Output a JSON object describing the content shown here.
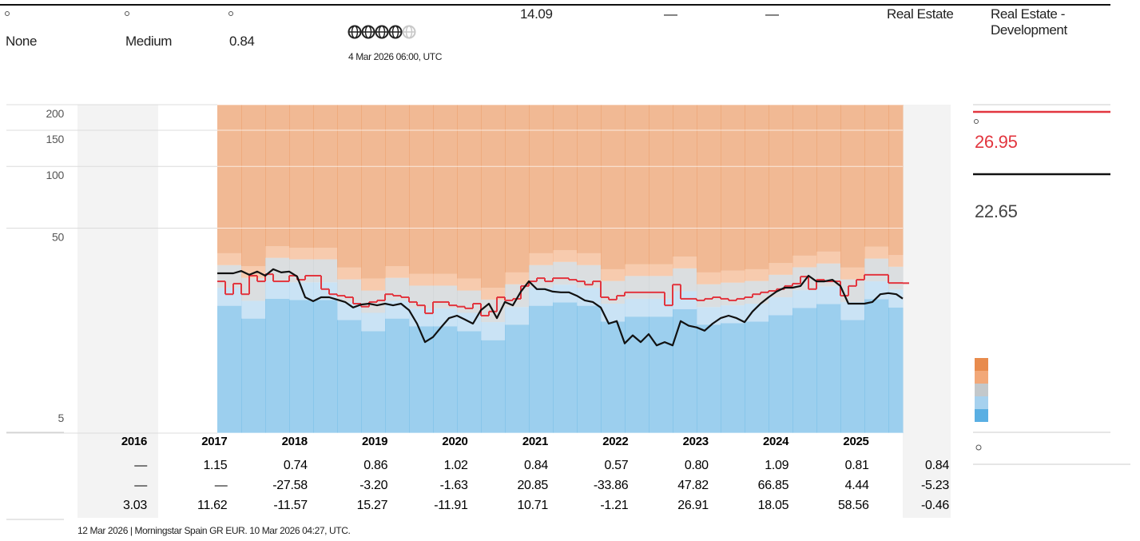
{
  "header": {
    "risk": "None",
    "uncertainty": "Medium",
    "beta": "0.84",
    "globes": 4,
    "rating_date": "4 Mar 2026 06:00, UTC",
    "price": "14.09",
    "dash1": "—",
    "dash2": "—",
    "sector": "Real Estate",
    "industry": "Real Estate - Development"
  },
  "chart_data": {
    "type": "line",
    "x": [
      2017.82,
      2017.92,
      2018.02,
      2018.12,
      2018.22,
      2018.32,
      2018.42,
      2018.52,
      2018.62,
      2018.72,
      2018.82,
      2018.92,
      2019.02,
      2019.12,
      2019.22,
      2019.32,
      2019.42,
      2019.52,
      2019.62,
      2019.72,
      2019.82,
      2019.92,
      2020.02,
      2020.12,
      2020.22,
      2020.32,
      2020.42,
      2020.52,
      2020.62,
      2020.72,
      2020.82,
      2020.92,
      2021.02,
      2021.12,
      2021.22,
      2021.32,
      2021.42,
      2021.52,
      2021.62,
      2021.72,
      2021.82,
      2021.92,
      2022.02,
      2022.12,
      2022.22,
      2022.32,
      2022.42,
      2022.52,
      2022.62,
      2022.72,
      2022.82,
      2022.92,
      2023.02,
      2023.12,
      2023.22,
      2023.32,
      2023.42,
      2023.52,
      2023.62,
      2023.72,
      2023.82,
      2023.92,
      2024.02,
      2024.12,
      2024.22,
      2024.32,
      2024.42,
      2024.52,
      2024.62,
      2024.72,
      2024.82,
      2024.92,
      2025.02,
      2025.12,
      2025.22,
      2025.32,
      2025.42,
      2025.52,
      2025.62,
      2025.72,
      2025.82,
      2025.92,
      2026.02,
      2026.12,
      2026.22,
      2026.32,
      2026.4
    ],
    "xlim": [
      2016.07,
      2027.0
    ],
    "ylim": [
      5,
      200
    ],
    "yticks": [
      5,
      50,
      100,
      150,
      200
    ],
    "log_y": true,
    "grid": true,
    "series": [
      {
        "color": "#e2363f",
        "step": true,
        "values": [
          27.5,
          23.8,
          26.8,
          23.8,
          29.3,
          27.5,
          29.8,
          27.5,
          27.5,
          29.3,
          28.0,
          29.3,
          29.3,
          25.2,
          23.8,
          23.4,
          23.0,
          21.4,
          20.7,
          21.8,
          22.2,
          23.8,
          23.4,
          23.0,
          21.8,
          21.0,
          19.2,
          21.8,
          21.8,
          21.0,
          20.7,
          20.3,
          21.4,
          18.7,
          19.6,
          23.0,
          22.2,
          22.6,
          26.1,
          27.5,
          28.5,
          27.5,
          28.5,
          28.5,
          28.0,
          27.5,
          26.5,
          27.5,
          23.0,
          22.4,
          23.4,
          24.3,
          24.3,
          24.3,
          24.3,
          24.3,
          21.0,
          26.5,
          22.6,
          22.6,
          22.2,
          22.6,
          23.0,
          22.6,
          22.2,
          22.6,
          23.0,
          23.8,
          24.3,
          24.7,
          25.2,
          26.1,
          26.8,
          29.0,
          25.2,
          28.0,
          27.5,
          27.5,
          23.4,
          26.1,
          28.0,
          29.6,
          29.6,
          29.6,
          27.0,
          27.0,
          26.95
        ]
      },
      {
        "color": "#111111",
        "values": [
          30.1,
          30.1,
          30.1,
          30.9,
          29.6,
          30.7,
          29.3,
          31.5,
          30.4,
          30.7,
          29.0,
          23.0,
          22.0,
          23.0,
          23.0,
          22.4,
          21.8,
          20.5,
          21.2,
          21.4,
          21.0,
          21.4,
          21.0,
          21.4,
          19.9,
          17.1,
          13.9,
          14.7,
          16.4,
          18.2,
          18.7,
          17.9,
          17.1,
          19.9,
          21.4,
          18.2,
          21.8,
          21.0,
          24.5,
          27.5,
          25.2,
          25.2,
          24.5,
          24.3,
          24.3,
          23.4,
          22.2,
          21.8,
          20.5,
          17.1,
          17.6,
          13.7,
          15.0,
          13.9,
          15.2,
          13.4,
          13.9,
          13.4,
          17.6,
          16.7,
          16.4,
          15.8,
          17.1,
          18.2,
          18.7,
          18.2,
          17.4,
          19.6,
          21.4,
          23.0,
          24.5,
          25.6,
          25.6,
          26.1,
          29.3,
          27.5,
          27.5,
          28.0,
          26.1,
          21.4,
          21.4,
          21.4,
          21.8,
          23.8,
          24.1,
          23.8,
          22.65
        ]
      }
    ],
    "bands": {
      "bins": [
        2017.82,
        2018.12,
        2018.42,
        2018.72,
        2019.02,
        2019.32,
        2019.62,
        2019.92,
        2020.22,
        2020.52,
        2020.82,
        2021.12,
        2021.42,
        2021.72,
        2022.02,
        2022.32,
        2022.62,
        2022.92,
        2023.22,
        2023.52,
        2023.82,
        2024.12,
        2024.42,
        2024.72,
        2025.02,
        2025.32,
        2025.62,
        2025.92,
        2026.22,
        2026.4
      ],
      "colors": [
        "#5aafe3",
        "#a6d1ee",
        "#c3c8cb",
        "#f2a878",
        "#e88b4d"
      ],
      "limits": [
        {
          "values": [
            20.9,
            18.1,
            22.6,
            22.3,
            22.3,
            17.8,
            15.7,
            18.1,
            16.6,
            16.6,
            15.7,
            14.2,
            16.9,
            20.9,
            21.7,
            20.9,
            17.5,
            18.5,
            18.5,
            20.1,
            16.9,
            17.2,
            17.5,
            18.8,
            20.4,
            21.3,
            17.8,
            22.5,
            20.5
          ]
        },
        {
          "values": [
            25.6,
            22.1,
            27.7,
            27.2,
            27.2,
            21.8,
            19.3,
            22.1,
            20.3,
            20.3,
            19.3,
            17.4,
            20.6,
            25.6,
            26.5,
            25.6,
            21.4,
            22.6,
            22.6,
            24.6,
            20.6,
            21.0,
            21.4,
            23.0,
            24.9,
            26.0,
            21.8,
            27.5,
            25.1
          ]
        },
        {
          "values": [
            33.0,
            28.6,
            35.8,
            35.2,
            35.2,
            28.1,
            24.8,
            28.6,
            26.2,
            26.2,
            24.8,
            22.4,
            26.6,
            33.0,
            34.2,
            33.0,
            27.6,
            29.2,
            29.2,
            31.8,
            26.6,
            27.1,
            27.6,
            29.6,
            32.2,
            33.6,
            28.1,
            35.5,
            32.4
          ]
        },
        {
          "values": [
            37.7,
            32.6,
            40.8,
            40.1,
            40.1,
            32.1,
            28.4,
            32.6,
            29.9,
            29.9,
            28.4,
            25.6,
            30.4,
            37.7,
            39.0,
            37.7,
            31.5,
            33.3,
            33.3,
            36.3,
            30.4,
            31.0,
            31.5,
            33.8,
            36.7,
            38.4,
            32.1,
            40.6,
            37.0
          ]
        }
      ]
    }
  },
  "table": {
    "header": [
      "2016",
      "2017",
      "2018",
      "2019",
      "2020",
      "2021",
      "2022",
      "2023",
      "2024",
      "2025"
    ],
    "rows": [
      [
        "—",
        "1.15",
        "0.74",
        "0.86",
        "1.02",
        "0.84",
        "0.57",
        "0.80",
        "1.09",
        "0.81",
        "0.84"
      ],
      [
        "—",
        "—",
        "-27.58",
        "-3.20",
        "-1.63",
        "20.85",
        "-33.86",
        "47.82",
        "66.85",
        "4.44",
        "-5.23"
      ],
      [
        "3.03",
        "11.62",
        "-11.57",
        "15.27",
        "-11.91",
        "10.71",
        "-1.21",
        "26.91",
        "18.05",
        "58.56",
        "-0.46"
      ]
    ]
  },
  "footer": "12 Mar 2026 |  Morningstar Spain GR EUR.  10 Mar 2026 04:27, UTC."
}
